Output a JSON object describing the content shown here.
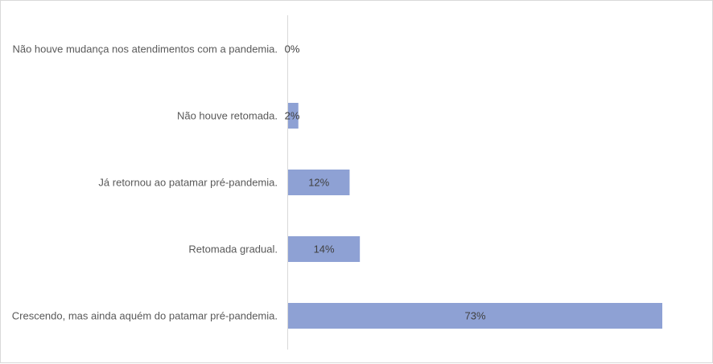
{
  "chart_data": {
    "type": "bar",
    "orientation": "horizontal",
    "categories": [
      "Não houve mudança nos atendimentos com a pandemia.",
      "Não houve retomada.",
      "Já retornou ao patamar pré-pandemia.",
      "Retomada gradual.",
      "Crescendo, mas ainda aquém do patamar pré-pandemia."
    ],
    "values": [
      0,
      2,
      12,
      14,
      73
    ],
    "value_labels": [
      "0%",
      "2%",
      "12%",
      "14%",
      "73%"
    ],
    "unit": "%",
    "xlim": [
      0,
      100
    ],
    "grid": false,
    "legend": "none",
    "bar_color": "#8ea1d4"
  }
}
